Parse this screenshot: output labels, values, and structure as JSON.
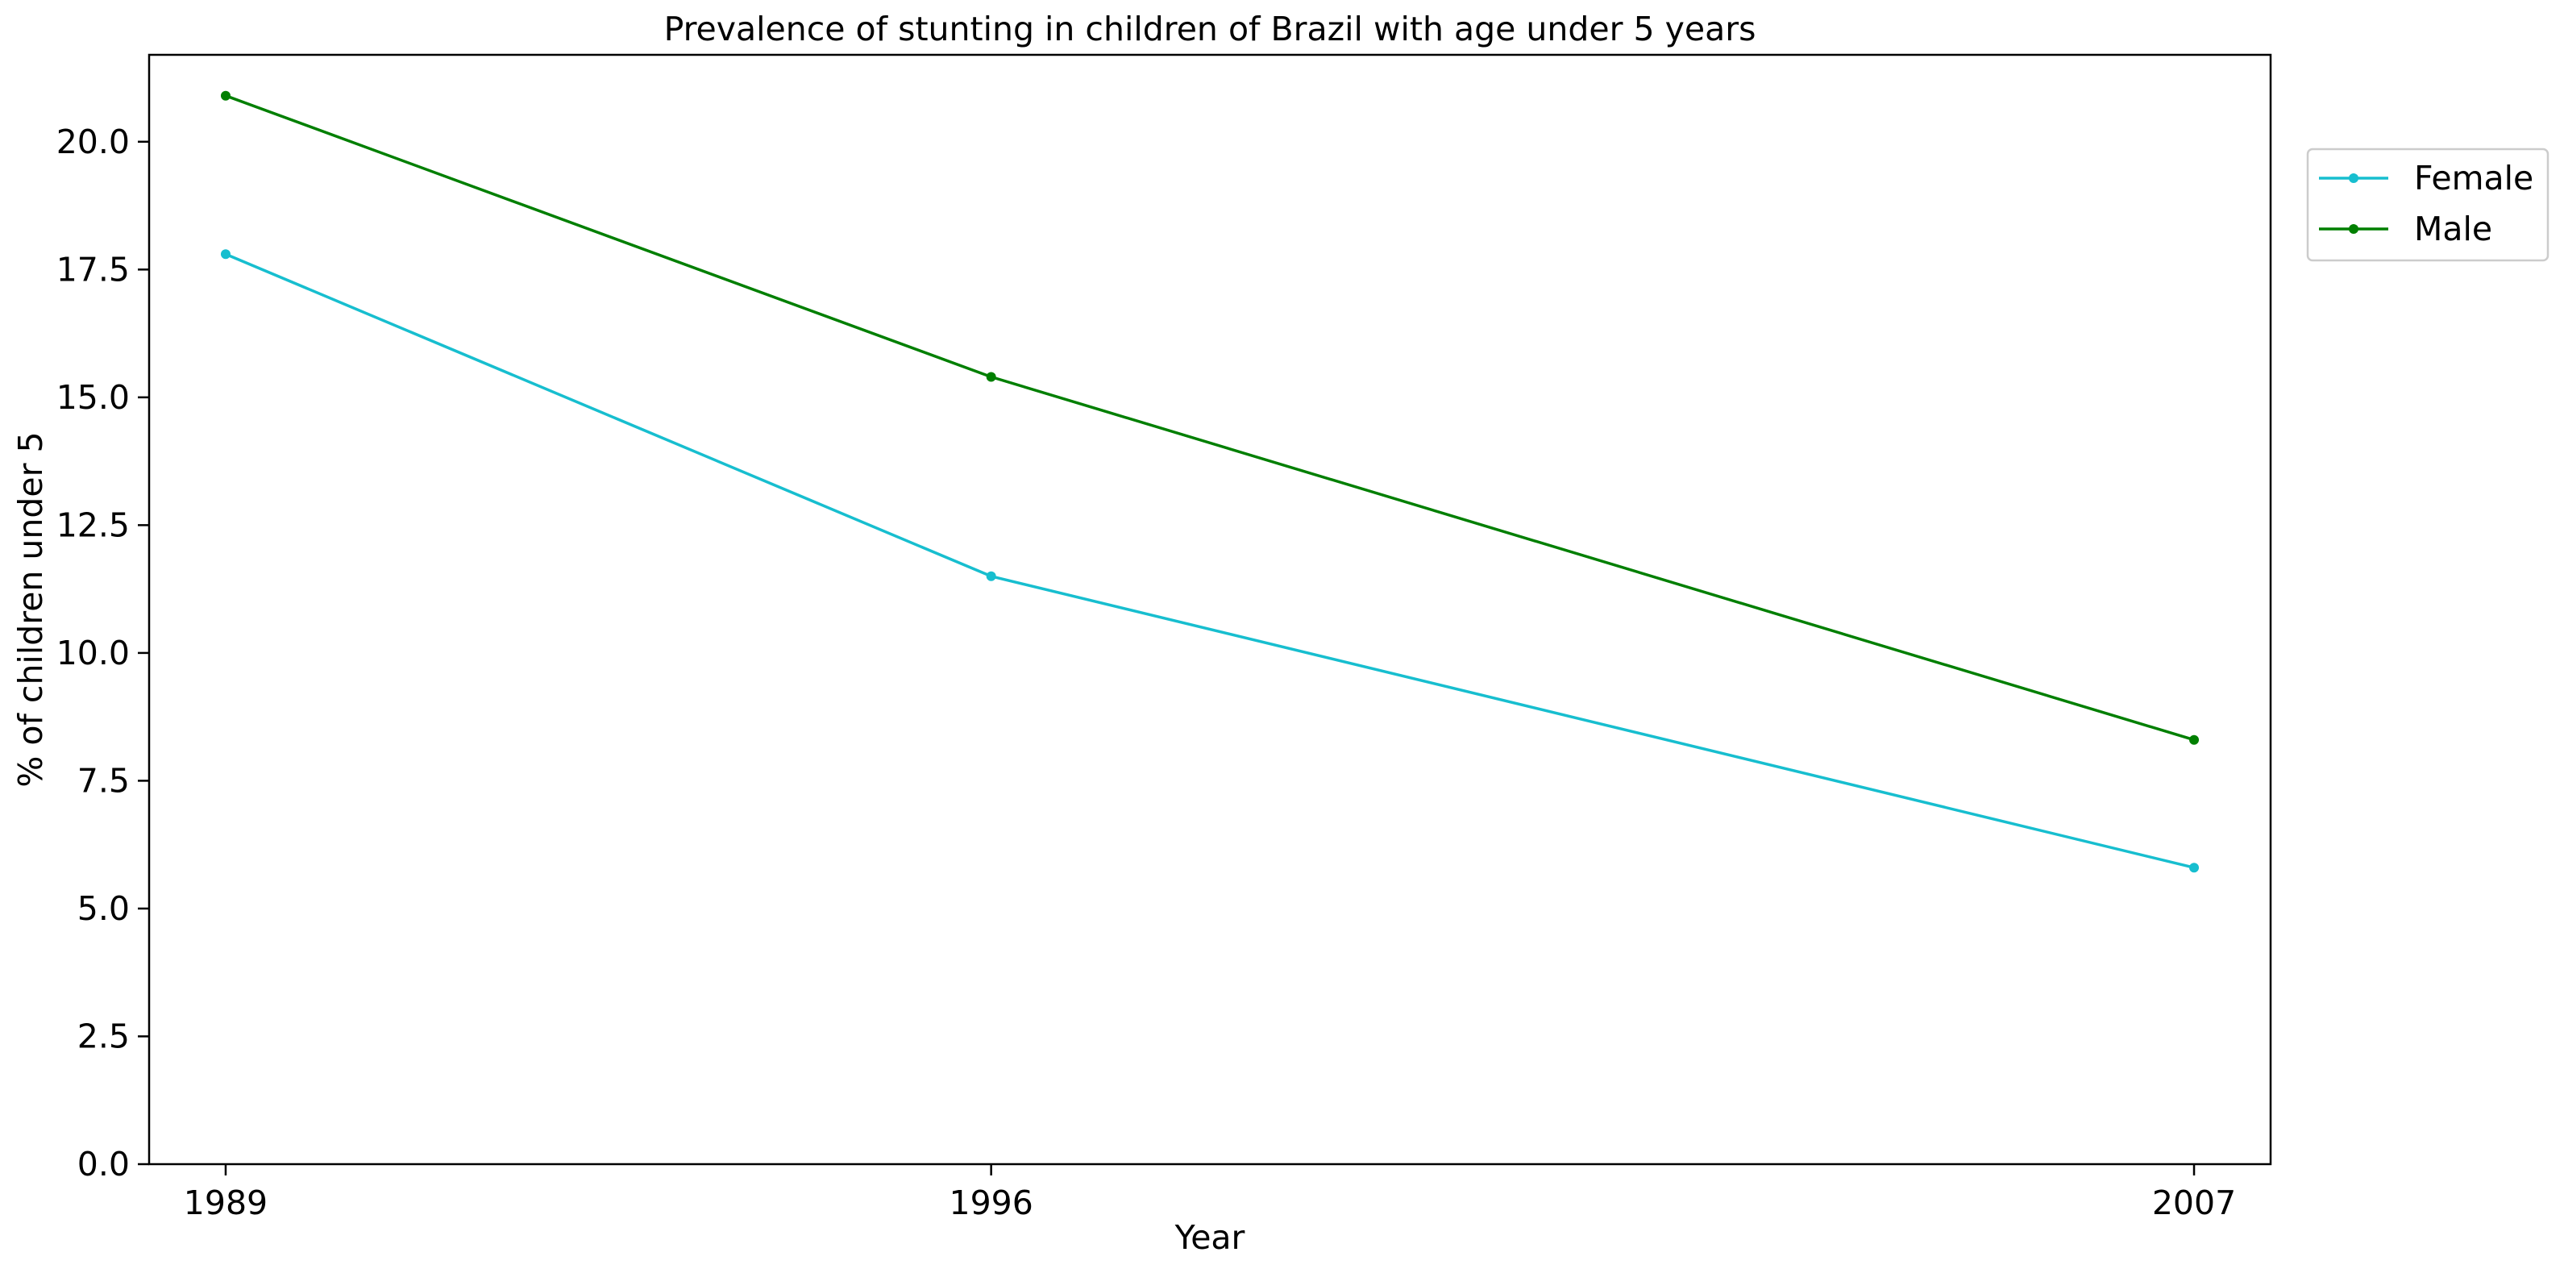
{
  "chart_data": {
    "type": "line",
    "title": "Prevalence of stunting in children of Brazil with age under 5 years",
    "xlabel": "Year",
    "ylabel": "% of children under 5",
    "x": [
      1989,
      1996,
      2007
    ],
    "x_tick_labels": [
      "1989",
      "1996",
      "2007"
    ],
    "xlim": [
      1988.3,
      2007.7
    ],
    "ylim": [
      0,
      21.7
    ],
    "y_ticks": [
      0,
      2.5,
      5,
      7.5,
      10,
      12.5,
      15,
      17.5,
      20
    ],
    "y_tick_labels": [
      "0.0",
      "2.5",
      "5.0",
      "7.5",
      "10.0",
      "12.5",
      "15.0",
      "17.5",
      "20.0"
    ],
    "grid": false,
    "legend_position": "outside-top-right",
    "series": [
      {
        "name": "Female",
        "color": "#17becf",
        "values": [
          17.8,
          11.5,
          5.8
        ]
      },
      {
        "name": "Male",
        "color": "#007f00",
        "values": [
          20.9,
          15.4,
          8.3
        ]
      }
    ]
  }
}
